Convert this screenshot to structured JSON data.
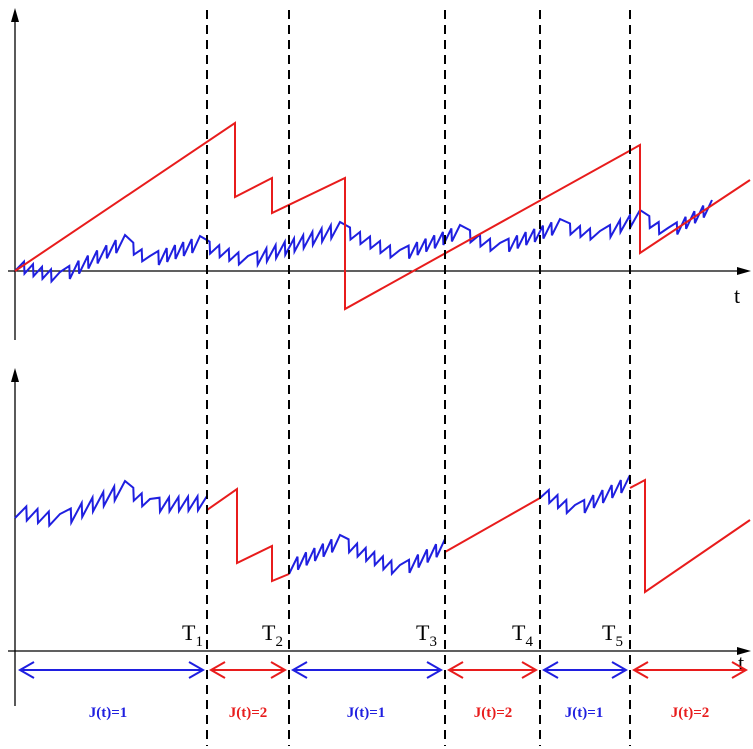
{
  "axis_label": "t",
  "switch_times": [
    {
      "letter": "T",
      "sub": "1"
    },
    {
      "letter": "T",
      "sub": "2"
    },
    {
      "letter": "T",
      "sub": "3"
    },
    {
      "letter": "T",
      "sub": "4"
    },
    {
      "letter": "T",
      "sub": "5"
    }
  ],
  "regimes": [
    {
      "label": "J(t)=1",
      "color": "#1f1fe0"
    },
    {
      "label": "J(t)=2",
      "color": "#e81c1c"
    },
    {
      "label": "J(t)=1",
      "color": "#1f1fe0"
    },
    {
      "label": "J(t)=2",
      "color": "#e81c1c"
    },
    {
      "label": "J(t)=1",
      "color": "#1f1fe0"
    },
    {
      "label": "J(t)=2",
      "color": "#e81c1c"
    }
  ],
  "colors": {
    "process_1": "#1f1fe0",
    "process_2": "#e81c1c",
    "axis": "#000000"
  }
}
